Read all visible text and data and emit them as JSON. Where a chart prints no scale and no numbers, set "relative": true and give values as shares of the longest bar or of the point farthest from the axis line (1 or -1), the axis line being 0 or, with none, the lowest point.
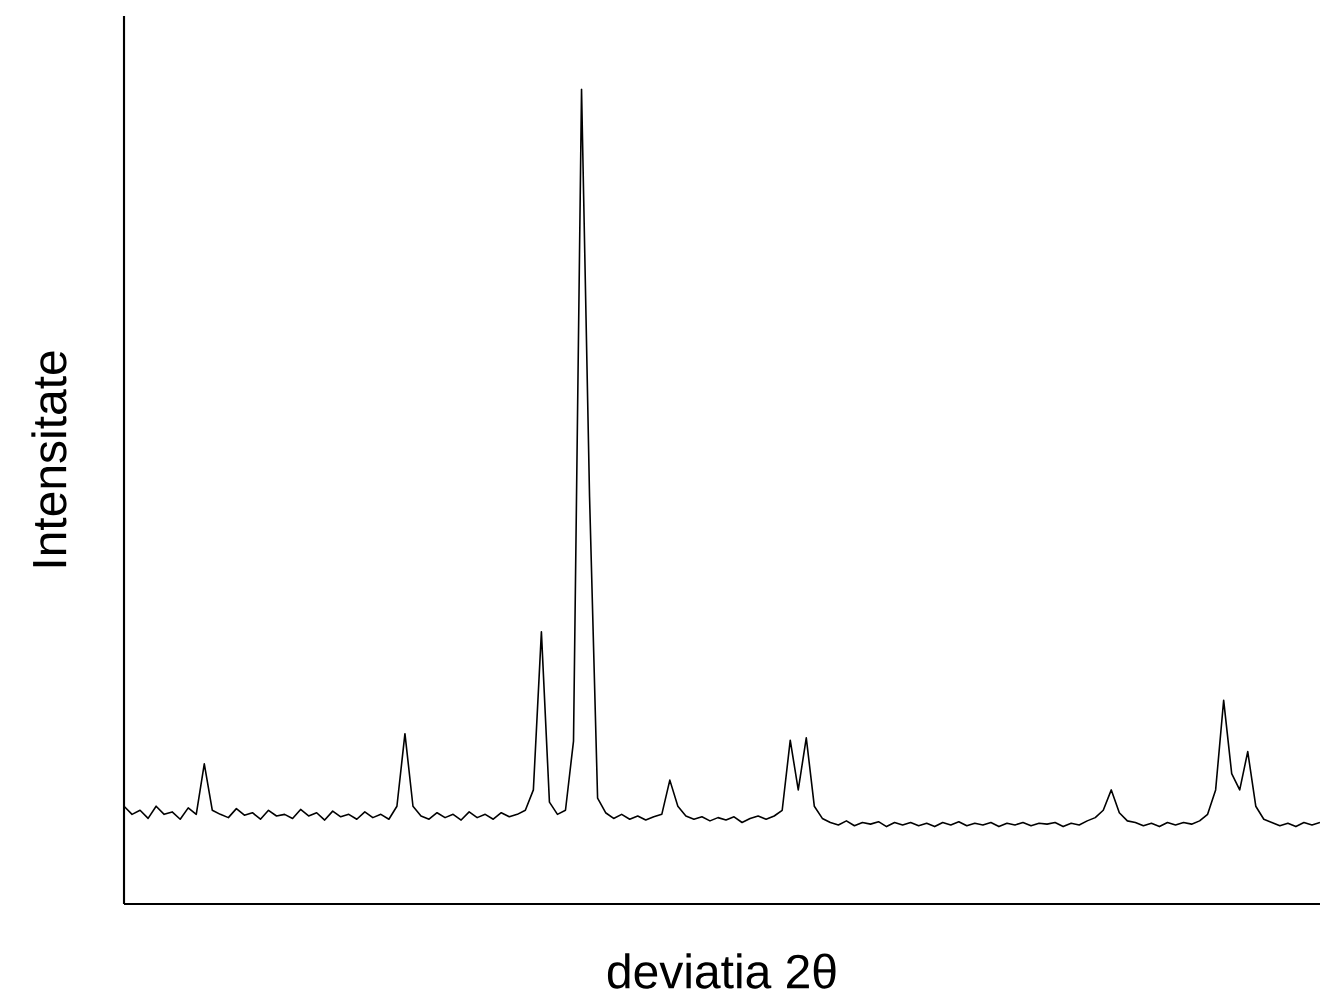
{
  "chart_data": {
    "type": "line",
    "xlabel": "deviatia 2θ",
    "ylabel": "Intensitate",
    "relative": true,
    "color": "#000000",
    "categories": [
      null,
      null,
      null,
      null,
      null,
      null,
      null,
      null,
      null,
      null,
      null,
      null,
      null,
      null,
      null,
      null,
      null,
      null,
      null,
      null,
      null,
      null,
      null,
      null,
      null,
      null,
      null,
      null,
      null,
      null,
      null,
      null,
      null,
      null,
      null,
      null,
      null,
      null,
      null,
      null,
      null,
      null,
      null,
      null,
      null,
      null,
      null,
      null,
      null,
      null,
      null,
      null,
      null,
      null,
      null,
      null,
      null,
      null,
      null,
      null,
      null,
      null,
      null,
      null,
      null,
      null,
      null,
      null,
      null,
      null,
      null,
      null,
      null,
      null,
      null,
      null,
      null,
      null,
      null,
      null,
      null,
      null,
      null,
      null,
      null,
      null,
      null,
      null,
      null,
      null,
      null,
      null,
      null,
      null,
      null,
      null,
      null,
      null,
      null,
      null,
      null,
      null,
      null,
      null,
      null,
      null,
      null,
      null,
      null,
      null,
      null,
      null,
      null,
      null,
      null,
      null,
      null,
      null,
      null,
      null,
      null,
      null,
      null,
      null,
      null,
      null,
      null,
      null,
      null,
      null,
      null,
      null,
      null,
      null,
      null,
      null,
      null,
      null,
      null,
      null,
      null,
      null,
      null,
      null,
      null,
      null,
      null,
      null,
      null,
      null
    ],
    "values": [
      0.12,
      0.11,
      0.115,
      0.105,
      0.12,
      0.11,
      0.113,
      0.104,
      0.118,
      0.11,
      0.172,
      0.115,
      0.11,
      0.106,
      0.117,
      0.109,
      0.112,
      0.104,
      0.115,
      0.108,
      0.11,
      0.105,
      0.116,
      0.108,
      0.112,
      0.103,
      0.114,
      0.107,
      0.11,
      0.104,
      0.113,
      0.106,
      0.11,
      0.104,
      0.12,
      0.209,
      0.12,
      0.108,
      0.104,
      0.112,
      0.106,
      0.11,
      0.103,
      0.113,
      0.106,
      0.11,
      0.104,
      0.112,
      0.107,
      0.11,
      0.115,
      0.14,
      0.334,
      0.125,
      0.11,
      0.115,
      0.2,
      1.0,
      0.5,
      0.13,
      0.112,
      0.105,
      0.11,
      0.104,
      0.108,
      0.103,
      0.107,
      0.11,
      0.152,
      0.12,
      0.108,
      0.104,
      0.107,
      0.102,
      0.106,
      0.103,
      0.107,
      0.1,
      0.105,
      0.108,
      0.104,
      0.108,
      0.115,
      0.201,
      0.14,
      0.204,
      0.12,
      0.105,
      0.1,
      0.097,
      0.102,
      0.096,
      0.1,
      0.098,
      0.101,
      0.095,
      0.1,
      0.097,
      0.1,
      0.096,
      0.099,
      0.095,
      0.1,
      0.097,
      0.101,
      0.096,
      0.099,
      0.097,
      0.1,
      0.095,
      0.099,
      0.097,
      0.1,
      0.096,
      0.099,
      0.098,
      0.1,
      0.095,
      0.099,
      0.097,
      0.102,
      0.106,
      0.115,
      0.14,
      0.112,
      0.102,
      0.1,
      0.096,
      0.099,
      0.095,
      0.1,
      0.097,
      0.1,
      0.098,
      0.102,
      0.11,
      0.14,
      0.25,
      0.16,
      0.14,
      0.187,
      0.12,
      0.104,
      0.1,
      0.096,
      0.099,
      0.095,
      0.1,
      0.097,
      0.1
    ]
  }
}
